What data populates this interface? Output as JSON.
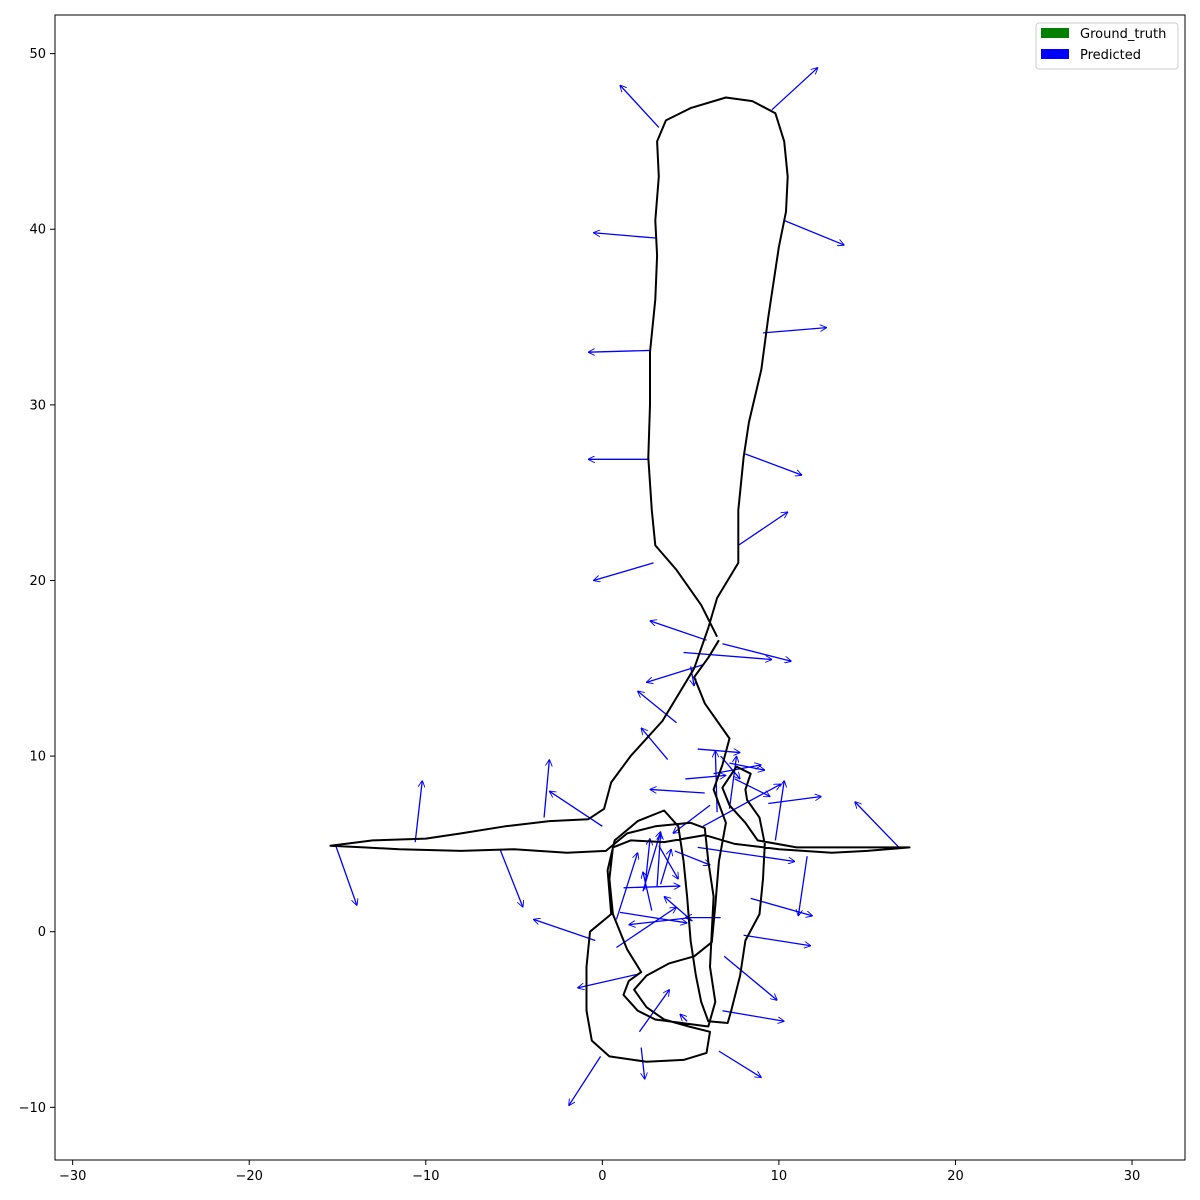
{
  "chart_data": {
    "type": "line",
    "title": "",
    "xlabel": "",
    "ylabel": "",
    "xlim": [
      -31,
      33
    ],
    "ylim": [
      -13,
      52.2
    ],
    "xticks": [
      -30,
      -20,
      -10,
      0,
      10,
      20,
      30
    ],
    "yticks": [
      -10,
      0,
      10,
      20,
      30,
      40,
      50
    ],
    "grid": false,
    "legend": {
      "position": "upper right",
      "entries": [
        {
          "label": "Ground_truth",
          "color": "#008000"
        },
        {
          "label": "Predicted",
          "color": "#0000ff"
        }
      ]
    },
    "trajectory_color": "#000000",
    "arrow_color": "#0000ff",
    "trajectory": [
      [
        6.5,
        16.8
      ],
      [
        5.6,
        18.6
      ],
      [
        4.2,
        20.6
      ],
      [
        3.0,
        22.0
      ],
      [
        2.8,
        24.0
      ],
      [
        2.6,
        27.0
      ],
      [
        2.7,
        30.0
      ],
      [
        2.7,
        33.0
      ],
      [
        3.0,
        36.0
      ],
      [
        3.1,
        38.5
      ],
      [
        3.0,
        40.5
      ],
      [
        3.2,
        43.0
      ],
      [
        3.1,
        45.0
      ],
      [
        3.6,
        46.2
      ],
      [
        5.0,
        46.9
      ],
      [
        7.0,
        47.5
      ],
      [
        8.5,
        47.3
      ],
      [
        9.8,
        46.6
      ],
      [
        10.3,
        45.0
      ],
      [
        10.5,
        43.0
      ],
      [
        10.4,
        41.0
      ],
      [
        10.0,
        39.0
      ],
      [
        9.7,
        37.0
      ],
      [
        9.4,
        35.0
      ],
      [
        9.0,
        32.0
      ],
      [
        8.3,
        29.0
      ],
      [
        8.0,
        27.0
      ],
      [
        7.7,
        24.0
      ],
      [
        7.7,
        21.0
      ],
      [
        6.5,
        19.0
      ],
      [
        6.0,
        17.3
      ],
      [
        5.2,
        15.0
      ],
      [
        3.4,
        12.0
      ],
      [
        1.6,
        10.0
      ],
      [
        0.5,
        8.5
      ],
      [
        0.1,
        7.0
      ],
      [
        -0.8,
        6.4
      ],
      [
        -3,
        6.3
      ],
      [
        -5.5,
        6.0
      ],
      [
        -8,
        5.6
      ],
      [
        -10,
        5.3
      ],
      [
        -13,
        5.2
      ],
      [
        -15.4,
        4.9
      ],
      [
        -13.5,
        4.8
      ],
      [
        -11.5,
        4.7
      ],
      [
        -8,
        4.6
      ],
      [
        -5,
        4.7
      ],
      [
        -2,
        4.5
      ],
      [
        0.2,
        4.6
      ],
      [
        1.4,
        5.6
      ],
      [
        3.0,
        6.0
      ],
      [
        5.0,
        6.2
      ],
      [
        5.8,
        5.9
      ],
      [
        6.0,
        4.0
      ],
      [
        6.3,
        2.0
      ],
      [
        6.2,
        0.0
      ],
      [
        6.1,
        -2.0
      ],
      [
        6.4,
        -4.0
      ],
      [
        6.0,
        -5.4
      ],
      [
        4.5,
        -5.2
      ],
      [
        3.0,
        -5.0
      ],
      [
        2.0,
        -4.5
      ],
      [
        1.2,
        -3.6
      ],
      [
        1.5,
        -2.8
      ],
      [
        2.2,
        -2.3
      ],
      [
        1.4,
        -1.0
      ],
      [
        0.6,
        1.0
      ],
      [
        0.4,
        3.0
      ],
      [
        0.6,
        4.8
      ],
      [
        1.6,
        5.2
      ],
      [
        3.5,
        5.1
      ],
      [
        5.8,
        5.5
      ],
      [
        7.5,
        5.0
      ],
      [
        10,
        4.7
      ],
      [
        13,
        4.5
      ],
      [
        15,
        4.6
      ],
      [
        17.4,
        4.8
      ],
      [
        14.5,
        4.8
      ],
      [
        11,
        4.8
      ],
      [
        8.8,
        5.2
      ],
      [
        8.1,
        6.2
      ],
      [
        7.2,
        7.2
      ],
      [
        6.8,
        8.2
      ],
      [
        7.6,
        9.4
      ],
      [
        8.4,
        9.0
      ],
      [
        8.1,
        8.1
      ],
      [
        8.2,
        7.5
      ],
      [
        8.9,
        6.5
      ],
      [
        9.2,
        5.0
      ],
      [
        9.1,
        3.0
      ],
      [
        8.9,
        1.0
      ],
      [
        8.1,
        -0.5
      ],
      [
        7.8,
        -2.5
      ],
      [
        7.3,
        -4.5
      ],
      [
        7.1,
        -5.2
      ],
      [
        6.0,
        -5.1
      ],
      [
        5.6,
        -4.0
      ],
      [
        5.3,
        -2.5
      ],
      [
        5.0,
        -0.5
      ],
      [
        4.8,
        2.0
      ],
      [
        4.6,
        4.0
      ],
      [
        4.3,
        6.0
      ],
      [
        3.5,
        6.9
      ],
      [
        2.0,
        6.3
      ],
      [
        0.7,
        5.2
      ],
      [
        0.3,
        3.5
      ],
      [
        0.5,
        1.0
      ],
      [
        -0.7,
        0.0
      ],
      [
        -0.9,
        -2.0
      ],
      [
        -0.9,
        -4.5
      ],
      [
        -0.6,
        -6.2
      ],
      [
        0.4,
        -7.1
      ],
      [
        2.5,
        -7.4
      ],
      [
        4.6,
        -7.3
      ],
      [
        5.9,
        -6.9
      ],
      [
        6.1,
        -5.7
      ],
      [
        4.9,
        -5.4
      ],
      [
        3.5,
        -5.0
      ],
      [
        2.5,
        -4.3
      ],
      [
        1.8,
        -3.3
      ],
      [
        2.5,
        -2.5
      ],
      [
        3.8,
        -1.8
      ],
      [
        5.2,
        -1.4
      ],
      [
        6.2,
        -0.6
      ],
      [
        6.4,
        1.5
      ],
      [
        6.6,
        4.0
      ],
      [
        7.0,
        6.2
      ],
      [
        6.3,
        8.1
      ],
      [
        6.8,
        9.5
      ],
      [
        7.2,
        11.0
      ],
      [
        5.8,
        13.0
      ],
      [
        5.2,
        14.5
      ],
      [
        6.0,
        15.6
      ],
      [
        6.6,
        16.6
      ]
    ],
    "arrows": [
      {
        "x": 3.2,
        "y": 45.8,
        "dx": -2.2,
        "dy": 2.4
      },
      {
        "x": 9.6,
        "y": 46.8,
        "dx": 2.6,
        "dy": 2.4
      },
      {
        "x": 3.0,
        "y": 39.5,
        "dx": -3.5,
        "dy": 0.3
      },
      {
        "x": 10.3,
        "y": 40.5,
        "dx": 3.4,
        "dy": -1.4
      },
      {
        "x": 2.7,
        "y": 33.1,
        "dx": -3.5,
        "dy": -0.1
      },
      {
        "x": 9.1,
        "y": 34.1,
        "dx": 3.6,
        "dy": 0.3
      },
      {
        "x": 2.6,
        "y": 26.9,
        "dx": -3.4,
        "dy": 0.0
      },
      {
        "x": 8.1,
        "y": 27.2,
        "dx": 3.2,
        "dy": -1.2
      },
      {
        "x": 7.7,
        "y": 22.0,
        "dx": 2.8,
        "dy": 1.9
      },
      {
        "x": 2.9,
        "y": 21.0,
        "dx": -3.4,
        "dy": -1.0
      },
      {
        "x": 5.9,
        "y": 16.6,
        "dx": -3.2,
        "dy": 1.1
      },
      {
        "x": 4.6,
        "y": 15.9,
        "dx": 5.0,
        "dy": -0.4
      },
      {
        "x": 6.8,
        "y": 16.4,
        "dx": 3.9,
        "dy": -1.0
      },
      {
        "x": 5.7,
        "y": 15.2,
        "dx": -3.2,
        "dy": -1.0
      },
      {
        "x": 5.0,
        "y": 15.1,
        "dx": 0.2,
        "dy": -1.1
      },
      {
        "x": 4.2,
        "y": 11.9,
        "dx": -2.2,
        "dy": 1.8
      },
      {
        "x": 3.7,
        "y": 9.8,
        "dx": -1.5,
        "dy": 1.8
      },
      {
        "x": 4.7,
        "y": 8.7,
        "dx": 2.3,
        "dy": 0.2
      },
      {
        "x": 6.3,
        "y": 9.0,
        "dx": 2.7,
        "dy": 0.5
      },
      {
        "x": 6.7,
        "y": 10.0,
        "dx": 1.1,
        "dy": -1.3
      },
      {
        "x": 7.5,
        "y": 8.7,
        "dx": 2.0,
        "dy": -1.0
      },
      {
        "x": 5.4,
        "y": 10.4,
        "dx": 2.4,
        "dy": -0.2
      },
      {
        "x": 6.5,
        "y": 6.8,
        "dx": -0.1,
        "dy": 3.5
      },
      {
        "x": 7.2,
        "y": 7.0,
        "dx": 0.4,
        "dy": 3.0
      },
      {
        "x": 7.2,
        "y": 9.6,
        "dx": 2.0,
        "dy": -0.4
      },
      {
        "x": 5.8,
        "y": 7.9,
        "dx": -3.1,
        "dy": 0.2
      },
      {
        "x": 6.1,
        "y": 7.2,
        "dx": -2.1,
        "dy": -1.6
      },
      {
        "x": 5.7,
        "y": 6.0,
        "dx": 4.4,
        "dy": 2.4
      },
      {
        "x": 9.4,
        "y": 7.3,
        "dx": 3.0,
        "dy": 0.4
      },
      {
        "x": 9.8,
        "y": 5.2,
        "dx": 0.5,
        "dy": 3.4
      },
      {
        "x": 5.4,
        "y": 4.8,
        "dx": 5.5,
        "dy": -0.8
      },
      {
        "x": 0.0,
        "y": 6.0,
        "dx": -3.0,
        "dy": 2.0
      },
      {
        "x": -3.3,
        "y": 6.5,
        "dx": 0.3,
        "dy": 3.3
      },
      {
        "x": -10.6,
        "y": 5.1,
        "dx": 0.4,
        "dy": 3.5
      },
      {
        "x": -15.1,
        "y": 4.9,
        "dx": 1.2,
        "dy": -3.4
      },
      {
        "x": -5.8,
        "y": 4.7,
        "dx": 1.3,
        "dy": -3.3
      },
      {
        "x": -0.4,
        "y": -0.5,
        "dx": -3.5,
        "dy": 1.2
      },
      {
        "x": 0.8,
        "y": -0.9,
        "dx": 3.4,
        "dy": 2.3
      },
      {
        "x": 1.0,
        "y": 1.1,
        "dx": 3.8,
        "dy": -0.6
      },
      {
        "x": 5.1,
        "y": 0.6,
        "dx": -1.6,
        "dy": 1.4
      },
      {
        "x": 1.2,
        "y": 2.5,
        "dx": 3.2,
        "dy": 0.1
      },
      {
        "x": 2.4,
        "y": 2.4,
        "dx": 0.3,
        "dy": 2.9
      },
      {
        "x": 2.3,
        "y": 2.3,
        "dx": 1.0,
        "dy": 3.4
      },
      {
        "x": 3.1,
        "y": 2.6,
        "dx": 0.2,
        "dy": 3.0
      },
      {
        "x": 4.1,
        "y": 4.6,
        "dx": 2.0,
        "dy": -0.8
      },
      {
        "x": 0.8,
        "y": 0.7,
        "dx": 1.2,
        "dy": 3.8
      },
      {
        "x": 3.3,
        "y": 2.7,
        "dx": 0.6,
        "dy": 2.0
      },
      {
        "x": 3.2,
        "y": 4.9,
        "dx": 1.1,
        "dy": -1.9
      },
      {
        "x": 2.8,
        "y": 1.2,
        "dx": -0.5,
        "dy": 2.2
      },
      {
        "x": 8.4,
        "y": 1.9,
        "dx": 3.5,
        "dy": -1.0
      },
      {
        "x": 11.6,
        "y": 4.3,
        "dx": -0.5,
        "dy": -3.4
      },
      {
        "x": 8.0,
        "y": -0.2,
        "dx": 3.8,
        "dy": -0.6
      },
      {
        "x": 6.9,
        "y": -1.4,
        "dx": 3.0,
        "dy": -2.5
      },
      {
        "x": 6.8,
        "y": -4.5,
        "dx": 3.5,
        "dy": -0.6
      },
      {
        "x": 4.8,
        "y": -5.1,
        "dx": -0.4,
        "dy": 0.4
      },
      {
        "x": 6.6,
        "y": -6.8,
        "dx": 2.4,
        "dy": -1.5
      },
      {
        "x": 2.1,
        "y": -5.7,
        "dx": 1.7,
        "dy": 2.4
      },
      {
        "x": 2.1,
        "y": -2.4,
        "dx": -3.5,
        "dy": -0.8
      },
      {
        "x": 2.2,
        "y": -6.6,
        "dx": 0.2,
        "dy": -1.8
      },
      {
        "x": -0.1,
        "y": -7.1,
        "dx": -1.8,
        "dy": -2.8
      },
      {
        "x": 16.8,
        "y": 4.8,
        "dx": -2.5,
        "dy": 2.6
      },
      {
        "x": 5.0,
        "y": 0.8,
        "dx": -3.5,
        "dy": -0.4
      },
      {
        "x": 6.7,
        "y": 0.8,
        "dx": -2.0,
        "dy": 0.0
      }
    ]
  }
}
